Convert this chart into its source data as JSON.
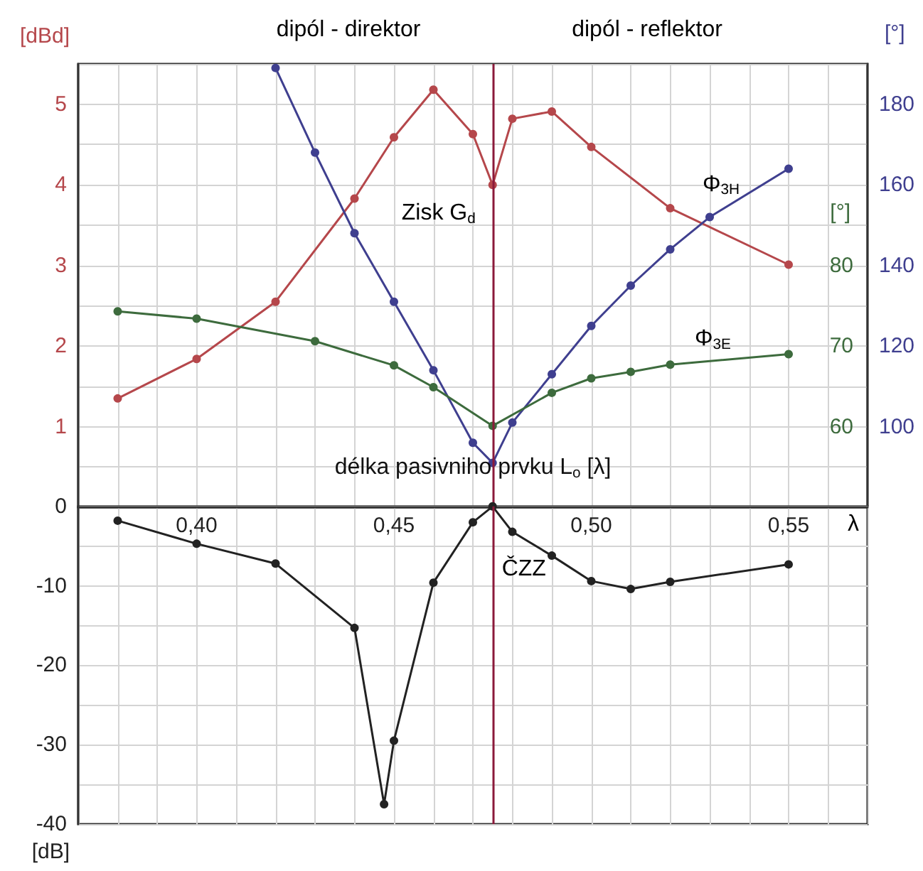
{
  "chart_data": [
    {
      "type": "line",
      "annotations": [
        "dipól - direktor",
        "dipól - reflektor"
      ],
      "ylabel": "[dBd]",
      "y2label": "[°]",
      "y3label": "[°]",
      "xlim": [
        0.37,
        0.57
      ],
      "xticks": [
        {
          "value": 0.38,
          "label": null
        },
        {
          "value": 0.39,
          "label": null
        },
        {
          "value": 0.4,
          "label": null
        },
        {
          "value": 0.41,
          "label": null
        },
        {
          "value": 0.42,
          "label": null
        },
        {
          "value": 0.43,
          "label": null
        },
        {
          "value": 0.44,
          "label": null
        },
        {
          "value": 0.45,
          "label": null
        },
        {
          "value": 0.46,
          "label": null
        },
        {
          "value": 0.47,
          "label": null
        },
        {
          "value": 0.48,
          "label": null
        },
        {
          "value": 0.49,
          "label": null
        },
        {
          "value": 0.5,
          "label": null
        },
        {
          "value": 0.51,
          "label": null
        },
        {
          "value": 0.52,
          "label": null
        },
        {
          "value": 0.53,
          "label": null
        },
        {
          "value": 0.54,
          "label": null
        },
        {
          "value": 0.55,
          "label": null
        },
        {
          "value": 0.56,
          "label": null
        }
      ],
      "ylim": [
        0,
        5.5
      ],
      "yticks": [
        {
          "value": 0,
          "label": null
        },
        {
          "value": 0.5,
          "label": null
        },
        1,
        {
          "value": 1.5,
          "label": null
        },
        2,
        {
          "value": 2.5,
          "label": null
        },
        3,
        {
          "value": 3.5,
          "label": null
        },
        4,
        {
          "value": 4.5,
          "label": null
        },
        5
      ],
      "y2lim": [
        80,
        190
      ],
      "y2ticks": [
        100,
        120,
        140,
        160,
        180
      ],
      "y3lim": [
        50,
        105
      ],
      "y3ticks": [
        60,
        70,
        80
      ],
      "tick_labels": "y",
      "grid": true,
      "marker": "circle",
      "line_style": "solid",
      "ref_lines": [
        {
          "axis": "x",
          "value": 0.475,
          "color": "#8b1a3a"
        }
      ],
      "series": [
        {
          "name": "Zisk G$_{d}$",
          "color": "#b5474b",
          "x": [
            0.38,
            0.4,
            0.42,
            0.44,
            0.45,
            0.46,
            0.47,
            0.475,
            0.48,
            0.49,
            0.5,
            0.52,
            0.55
          ],
          "values": [
            1.35,
            1.84,
            2.55,
            3.83,
            4.59,
            5.18,
            4.63,
            4.0,
            4.82,
            4.91,
            4.47,
            3.71,
            3.01
          ]
        },
        {
          "name": "Φ$_{3H}$",
          "color": "#3f3f8f",
          "axis": "y2",
          "x": [
            0.42,
            0.43,
            0.44,
            0.45,
            0.46,
            0.47,
            0.475,
            0.48,
            0.49,
            0.5,
            0.51,
            0.52,
            0.53,
            0.55
          ],
          "values": [
            189,
            168,
            148,
            131,
            114,
            96,
            91,
            101,
            113,
            125,
            135,
            144,
            152,
            164
          ]
        },
        {
          "name": "Φ$_{3E}$",
          "color": "#3d6b3d",
          "axis": "y3",
          "x": [
            0.38,
            0.4,
            0.43,
            0.45,
            0.46,
            0.475,
            0.49,
            0.5,
            0.51,
            0.52,
            0.55
          ],
          "values": [
            74.3,
            73.4,
            70.6,
            67.6,
            64.9,
            60.1,
            64.2,
            66.0,
            66.8,
            67.7,
            69.0
          ]
        }
      ]
    },
    {
      "type": "line",
      "xlabel": "délka pasivniho prvku L$_{o}$ [λ]",
      "ylabel": "[dB]",
      "annotations": [
        "λ"
      ],
      "xlim": [
        0.37,
        0.57
      ],
      "xticks": [
        {
          "value": 0.38,
          "label": null
        },
        {
          "value": 0.39,
          "label": null
        },
        {
          "value": 0.4,
          "label": "0,40"
        },
        {
          "value": 0.41,
          "label": null
        },
        {
          "value": 0.42,
          "label": null
        },
        {
          "value": 0.43,
          "label": null
        },
        {
          "value": 0.44,
          "label": null
        },
        {
          "value": 0.45,
          "label": "0,45"
        },
        {
          "value": 0.46,
          "label": null
        },
        {
          "value": 0.47,
          "label": null
        },
        {
          "value": 0.48,
          "label": null
        },
        {
          "value": 0.49,
          "label": null
        },
        {
          "value": 0.5,
          "label": "0,50"
        },
        {
          "value": 0.51,
          "label": null
        },
        {
          "value": 0.52,
          "label": null
        },
        {
          "value": 0.53,
          "label": null
        },
        {
          "value": 0.54,
          "label": null
        },
        {
          "value": 0.55,
          "label": "0,55"
        },
        {
          "value": 0.56,
          "label": null
        }
      ],
      "ylim": [
        -40,
        0
      ],
      "yticks": [
        -40,
        {
          "value": -35,
          "label": null
        },
        -30,
        {
          "value": -25,
          "label": null
        },
        -20,
        {
          "value": -15,
          "label": null
        },
        -10,
        {
          "value": -5,
          "label": null
        },
        0
      ],
      "grid": true,
      "marker": "circle",
      "line_style": "solid",
      "ref_lines": [
        {
          "axis": "x",
          "value": 0.475,
          "color": "#8b1a3a"
        }
      ],
      "series": [
        {
          "name": "ČZZ",
          "color": "#222222",
          "x": [
            0.38,
            0.4,
            0.42,
            0.44,
            0.4475,
            0.45,
            0.46,
            0.47,
            0.475,
            0.48,
            0.49,
            0.5,
            0.51,
            0.52,
            0.55
          ],
          "values": [
            -1.8,
            -4.7,
            -7.2,
            -15.3,
            -37.5,
            -29.5,
            -9.6,
            -2.0,
            0,
            -3.2,
            -6.2,
            -9.4,
            -10.4,
            -9.5,
            -7.3
          ]
        }
      ]
    }
  ]
}
